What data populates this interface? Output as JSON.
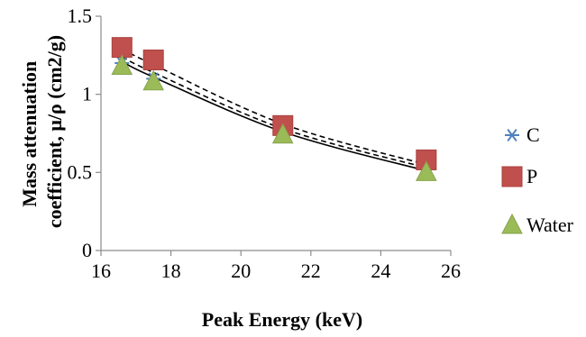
{
  "chart_data": {
    "type": "scatter",
    "title": "",
    "xlabel": "Peak Energy  (keV)",
    "ylabel_lines": [
      "Mass attenuation",
      "coefficient, μ/ρ (cm2/g)"
    ],
    "xlim": [
      16,
      26
    ],
    "ylim": [
      0,
      1.5
    ],
    "x_ticks": [
      16,
      18,
      20,
      22,
      24,
      26
    ],
    "x_tick_labels": [
      "16",
      "18",
      "20",
      "22",
      "24",
      "26"
    ],
    "y_ticks": [
      0,
      0.5,
      1,
      1.5
    ],
    "y_tick_labels": [
      "0",
      "0.5",
      "1",
      "1.5"
    ],
    "grid": false,
    "legend_position": "right",
    "series": [
      {
        "name": "C",
        "marker": "asterisk",
        "color": "#4F81BD",
        "x": [
          16.6,
          17.5,
          21.2,
          25.3
        ],
        "y": [
          1.2,
          1.1,
          0.76,
          0.52
        ],
        "trendline": {
          "style": "solid",
          "color": "#000000",
          "values": [
            1.21,
            1.11,
            0.76,
            0.51
          ]
        }
      },
      {
        "name": "P",
        "marker": "square",
        "color": "#C0504D",
        "x": [
          16.6,
          17.5,
          21.2,
          25.3
        ],
        "y": [
          1.3,
          1.22,
          0.8,
          0.58
        ],
        "trendline": {
          "style": "dashed",
          "color": "#000000",
          "values": [
            1.29,
            1.19,
            0.81,
            0.55
          ]
        }
      },
      {
        "name": "Water",
        "marker": "triangle",
        "color": "#9BBB59",
        "x": [
          16.6,
          17.5,
          21.2,
          25.3
        ],
        "y": [
          1.18,
          1.08,
          0.74,
          0.5
        ],
        "trendline": {
          "style": "dashed",
          "color": "#000000",
          "values": [
            1.24,
            1.14,
            0.78,
            0.53
          ]
        }
      }
    ]
  }
}
